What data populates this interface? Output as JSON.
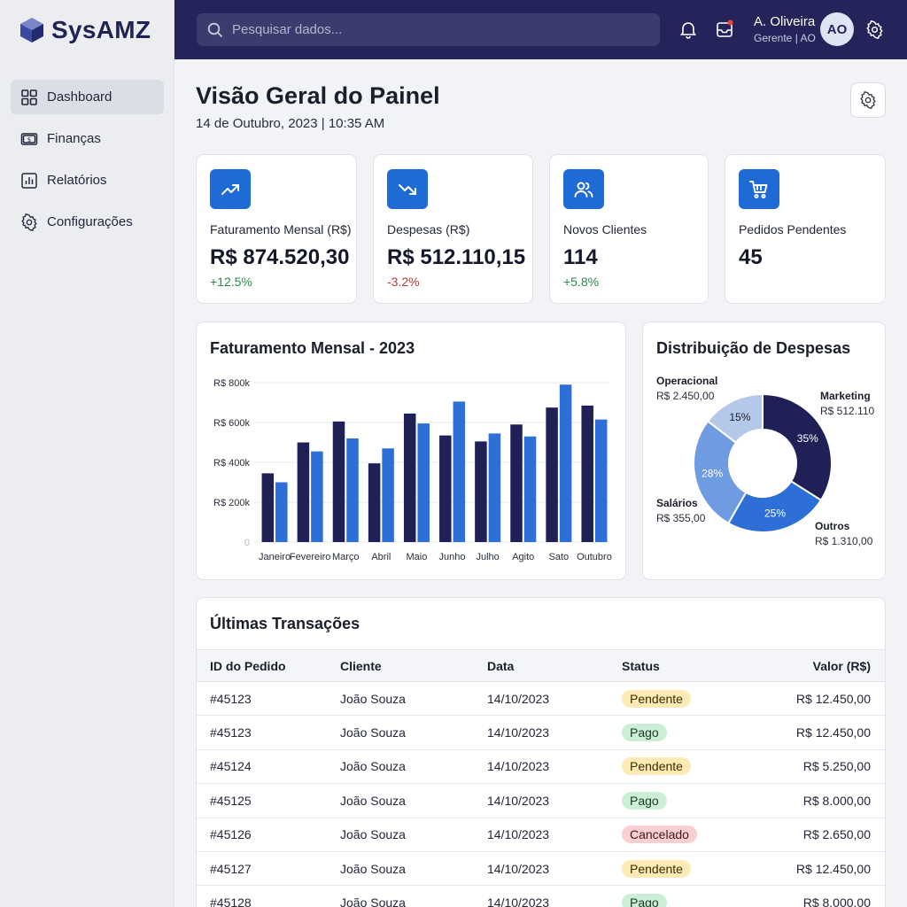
{
  "app": {
    "name": "SysAMZ"
  },
  "sidebar": {
    "items": [
      {
        "label": "Dashboard",
        "icon": "dashboard-icon",
        "active": true
      },
      {
        "label": "Finanças",
        "icon": "money-icon"
      },
      {
        "label": "Relatórios",
        "icon": "report-icon"
      },
      {
        "label": "Configurações",
        "icon": "gear-icon"
      }
    ]
  },
  "topbar": {
    "search_placeholder": "Pesquisar dados...",
    "user_name": "A. Oliveira",
    "user_role": "Gerente | AO",
    "avatar_initials": "AO"
  },
  "page": {
    "title": "Visão Geral do Painel",
    "date": "14 de Outubro, 2023 | 10:35 AM"
  },
  "kpis": [
    {
      "label": "Faturamento Mensal (R$)",
      "value": "R$ 874.520,30",
      "delta": "+12.5%",
      "delta_color": "#2a8a45",
      "icon": "trending-up-icon"
    },
    {
      "label": "Despesas (R$)",
      "value": "R$ 512.110,15",
      "delta": "-3.2%",
      "delta_color": "#c23b33",
      "icon": "trending-down-icon"
    },
    {
      "label": "Novos Clientes",
      "value": "114",
      "delta": "+5.8%",
      "delta_color": "#2a8a45",
      "icon": "users-icon"
    },
    {
      "label": "Pedidos Pendentes",
      "value": "45",
      "delta": "",
      "icon": "cart-icon"
    }
  ],
  "colors": {
    "accent": "#1f6bd6",
    "navy": "#24245a"
  },
  "chart_data": [
    {
      "type": "bar",
      "title": "Faturamento Mensal - 2023",
      "categories": [
        "Janeiro",
        "Fevereiro",
        "Março",
        "Abril",
        "Maio",
        "Junho",
        "Julho",
        "Agito",
        "Sato",
        "Outubro"
      ],
      "y_ticks": [
        "R$ 800k",
        "R$ 600k",
        "R$ 400k",
        "R$ 200k",
        "0"
      ],
      "ylim": [
        0,
        800
      ],
      "grid": true,
      "series": [
        {
          "color": "#1f2156",
          "values": [
            345,
            500,
            605,
            395,
            645,
            535,
            505,
            590,
            675,
            685
          ]
        },
        {
          "color": "#2d6fd6",
          "values": [
            300,
            455,
            520,
            470,
            595,
            705,
            545,
            530,
            790,
            615
          ]
        }
      ]
    },
    {
      "type": "pie",
      "title": "Distribuição de Despesas",
      "donut": true,
      "slices": [
        {
          "label": "Marketing",
          "value_text": "R$ 512.110",
          "percent": 35,
          "color": "#1f2156"
        },
        {
          "label": "Outros",
          "value_text": "R$ 1.310,00",
          "percent": 25,
          "color": "#2d6fd6"
        },
        {
          "label": "Salários",
          "value_text": "R$ 355,00",
          "percent": 28,
          "color": "#6f9be0"
        },
        {
          "label": "Operacional",
          "value_text": "R$ 2.450,00",
          "percent": 15,
          "color": "#b4c8ea"
        }
      ]
    }
  ],
  "transactions": {
    "title": "Últimas Transações",
    "columns": [
      "ID do Pedido",
      "Cliente",
      "Data",
      "Status",
      "Valor (R$)"
    ],
    "rows": [
      {
        "id": "#45123",
        "client": "João Souza",
        "date": "14/10/2023",
        "status": "Pendente",
        "value": "R$ 12.450,00"
      },
      {
        "id": "#45123",
        "client": "João Souza",
        "date": "14/10/2023",
        "status": "Pago",
        "value": "R$ 12.450,00"
      },
      {
        "id": "#45124",
        "client": "João Souza",
        "date": "14/10/2023",
        "status": "Pendente",
        "value": "R$ 5.250,00"
      },
      {
        "id": "#45125",
        "client": "João Souza",
        "date": "14/10/2023",
        "status": "Pago",
        "value": "R$ 8.000,00"
      },
      {
        "id": "#45126",
        "client": "João Souza",
        "date": "14/10/2023",
        "status": "Cancelado",
        "value": "R$ 2.650,00"
      },
      {
        "id": "#45127",
        "client": "João Souza",
        "date": "14/10/2023",
        "status": "Pendente",
        "value": "R$ 12.450,00"
      },
      {
        "id": "#45128",
        "client": "João Souza",
        "date": "14/10/2023",
        "status": "Pago",
        "value": "R$ 8.000,00"
      }
    ]
  }
}
